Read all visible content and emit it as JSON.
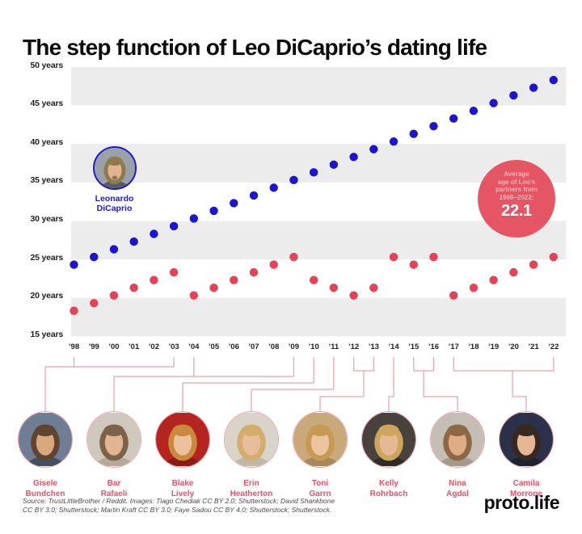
{
  "title": "The step function of Leo DiCaprio’s dating life",
  "colors": {
    "leo_blue": "#1d14d2",
    "partner_red": "#e84055",
    "band_gray": "#ececec",
    "connector_pink": "#eda0a6",
    "callout_red": "#e65563",
    "name_pink": "#ee4f66"
  },
  "chart_data": {
    "type": "scatter",
    "x": [
      "’98",
      "’99",
      "’00",
      "’01",
      "’02",
      "’03",
      "’04",
      "’05",
      "’06",
      "’07",
      "’08",
      "’09",
      "’10",
      "’11",
      "’12",
      "’13",
      "’14",
      "’15",
      "’16",
      "’17",
      "’18",
      "’19",
      "’20",
      "’21",
      "’22"
    ],
    "y_axis": {
      "min": 15,
      "max": 50,
      "tick_labels": [
        "50 years",
        "45 years",
        "40 years",
        "35 years",
        "30 years",
        "25 years",
        "20 years",
        "15 years"
      ]
    },
    "grid": "alternating 5-year gray bands",
    "series": [
      {
        "name": "Leonardo DiCaprio's age",
        "color": "#1d14d2",
        "values": [
          24,
          25,
          26,
          27,
          28,
          29,
          30,
          31,
          32,
          33,
          34,
          35,
          36,
          37,
          38,
          39,
          40,
          41,
          42,
          43,
          44,
          45,
          46,
          47,
          48
        ]
      },
      {
        "name": "Partner's age",
        "color": "#e84055",
        "values": [
          18,
          19,
          20,
          21,
          22,
          23,
          20,
          21,
          22,
          23,
          24,
          25,
          22,
          21,
          20,
          21,
          25,
          24,
          25,
          20,
          21,
          22,
          23,
          24,
          25
        ]
      }
    ]
  },
  "leo": {
    "label_line1": "Leonardo",
    "label_line2": "DiCaprio"
  },
  "callout": {
    "lines": [
      "Average",
      "age of Leo’s",
      "partners from",
      "1998–2022:"
    ],
    "value": "22.1"
  },
  "partners": [
    {
      "name_line1": "Gisele",
      "name_line2": "Bundchen",
      "years": {
        "from": "’98",
        "to": "’03"
      },
      "avatar": {
        "bg": "#6e7f95",
        "hair": "#5f4430",
        "skin": "#d9a87e",
        "shoulders": "#435064"
      }
    },
    {
      "name_line1": "Bar",
      "name_line2": "Rafaeli",
      "years": {
        "from": "’04",
        "to": "’09"
      },
      "avatar": {
        "bg": "#cfc9bd",
        "hair": "#7d6148",
        "skin": "#e3b492",
        "shoulders": "#b5aa98"
      }
    },
    {
      "name_line1": "Blake",
      "name_line2": "Lively",
      "years": {
        "from": "’10",
        "to": "’10"
      },
      "avatar": {
        "bg": "#b5251f",
        "hair": "#c98a3e",
        "skin": "#ecc29e",
        "shoulders": "#8e1a16"
      }
    },
    {
      "name_line1": "Erin",
      "name_line2": "Heatherton",
      "years": {
        "from": "’11",
        "to": "’11"
      },
      "avatar": {
        "bg": "#d9d4c9",
        "hair": "#d3ad6b",
        "skin": "#e8bd9c",
        "shoulders": "#c0b8a6"
      }
    },
    {
      "name_line1": "Toni",
      "name_line2": "Garrn",
      "years": {
        "from": "’12",
        "to": "’13"
      },
      "avatar": {
        "bg": "#c9a87a",
        "hair": "#c69a52",
        "skin": "#ecc4a0",
        "shoulders": "#a9875c"
      }
    },
    {
      "name_line1": "Kelly",
      "name_line2": "Rohrbach",
      "years": {
        "from": "’14",
        "to": "’14"
      },
      "avatar": {
        "bg": "#47423c",
        "hair": "#cda55c",
        "skin": "#e6b994",
        "shoulders": "#2f2b27"
      }
    },
    {
      "name_line1": "Nina",
      "name_line2": "Agdal",
      "years": {
        "from": "’15",
        "to": "’16"
      },
      "avatar": {
        "bg": "#c5beb4",
        "hair": "#8d6844",
        "skin": "#e0ac85",
        "shoulders": "#a39a8d"
      }
    },
    {
      "name_line1": "Camila",
      "name_line2": "Morrone",
      "years": {
        "from": "’17",
        "to": "’22"
      },
      "avatar": {
        "bg": "#2b3148",
        "hair": "#38281f",
        "skin": "#e5b795",
        "shoulders": "#1d2233"
      }
    }
  ],
  "leo_avatar": {
    "bg": "#9aa2a8",
    "hair": "#8f7a50",
    "skin": "#e2b48e",
    "shoulders": "#565c64"
  },
  "footer": {
    "source_line1": "Source: TrustLittleBrother / Reddit. Images: Tiago Chediak CC BY 2.0; Shutterstock; David Shankbone",
    "source_line2": "CC BY 3.0; Shutterstock; Martin Kraft CC BY 3.0; Faye Sadou CC BY 4.0; Shutterstock; Shutterstock.",
    "brand": "proto.life"
  }
}
